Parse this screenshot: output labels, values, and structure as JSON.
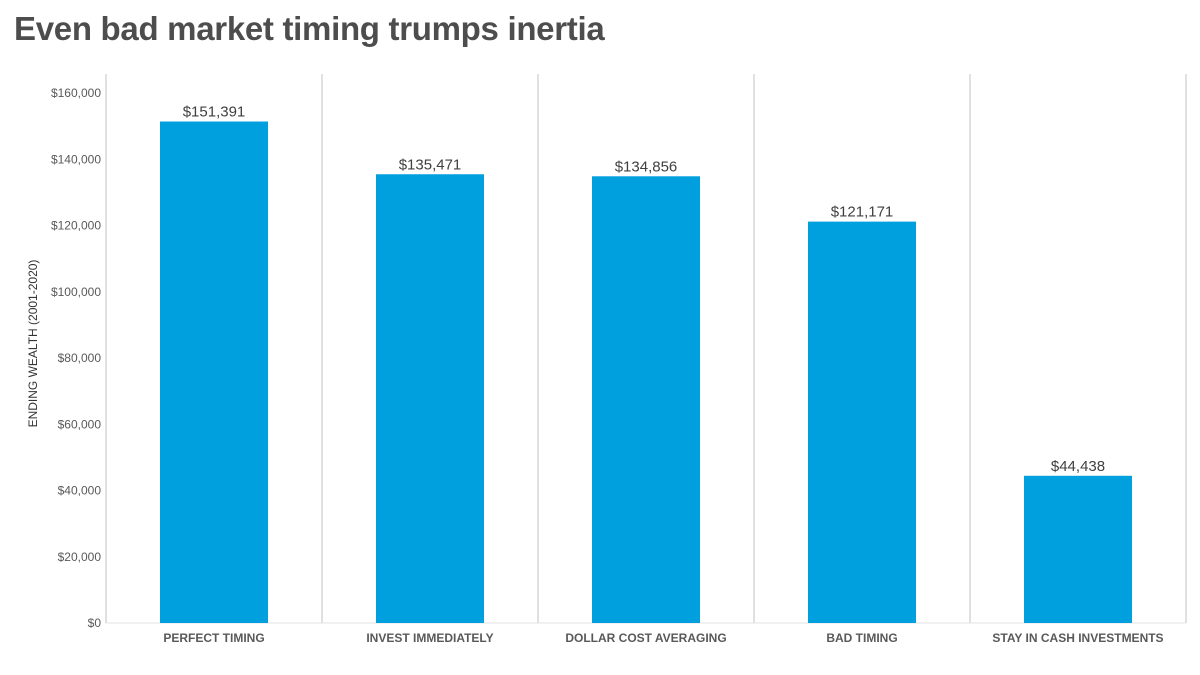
{
  "chart_data": {
    "type": "bar",
    "title": "Even bad market timing trumps inertia",
    "ylabel": "ENDING WEALTH (2001-2020)",
    "xlabel": "",
    "categories": [
      "PERFECT TIMING",
      "INVEST IMMEDIATELY",
      "DOLLAR COST AVERAGING",
      "BAD TIMING",
      "STAY IN CASH INVESTMENTS"
    ],
    "values": [
      151391,
      135471,
      134856,
      121171,
      44438
    ],
    "value_labels": [
      "$151,391",
      "$135,471",
      "$134,856",
      "$121,171",
      "$44,438"
    ],
    "ylim": [
      0,
      160000
    ],
    "yticks": [
      0,
      20000,
      40000,
      60000,
      80000,
      100000,
      120000,
      140000,
      160000
    ],
    "ytick_labels": [
      "$0",
      "$20,000",
      "$40,000",
      "$60,000",
      "$80,000",
      "$100,000",
      "$120,000",
      "$140,000",
      "$160,000"
    ],
    "bar_color": "#009fde",
    "grid": false,
    "legend": "none"
  }
}
